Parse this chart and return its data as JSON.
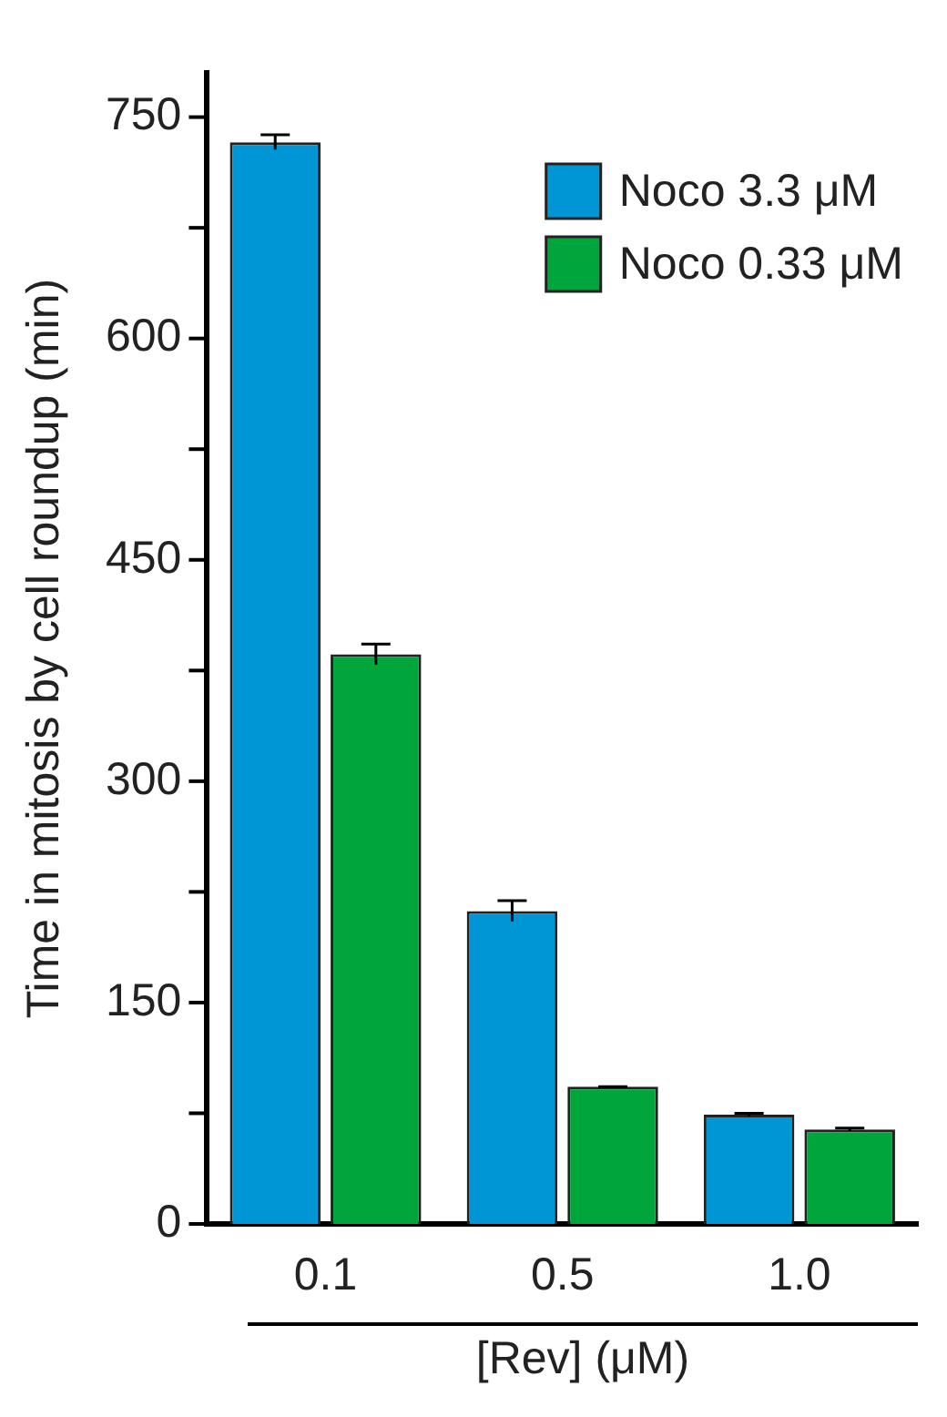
{
  "chart_data": {
    "type": "bar",
    "ylabel": "Time in mitosis by cell roundup (min)",
    "xlabel": "[Rev] (μM)",
    "categories": [
      "0.1",
      "0.5",
      "1.0"
    ],
    "series": [
      {
        "name": "Noco 3.3 μM",
        "color": "#0096d6",
        "values": [
          733,
          212,
          74
        ],
        "errors": [
          5,
          7,
          1
        ]
      },
      {
        "name": "Noco 0.33 μM",
        "color": "#00a63c",
        "values": [
          386,
          93,
          64
        ],
        "errors": [
          7,
          0,
          1
        ]
      }
    ],
    "ylim": [
      0,
      780
    ],
    "yticks": [
      0,
      {
        "value": 75,
        "label": null
      },
      150,
      {
        "value": 225,
        "label": null
      },
      300,
      {
        "value": 375,
        "label": null
      },
      450,
      {
        "value": 525,
        "label": null
      },
      600,
      {
        "value": 675,
        "label": null
      },
      750
    ],
    "grid": false,
    "legend": "top right"
  }
}
